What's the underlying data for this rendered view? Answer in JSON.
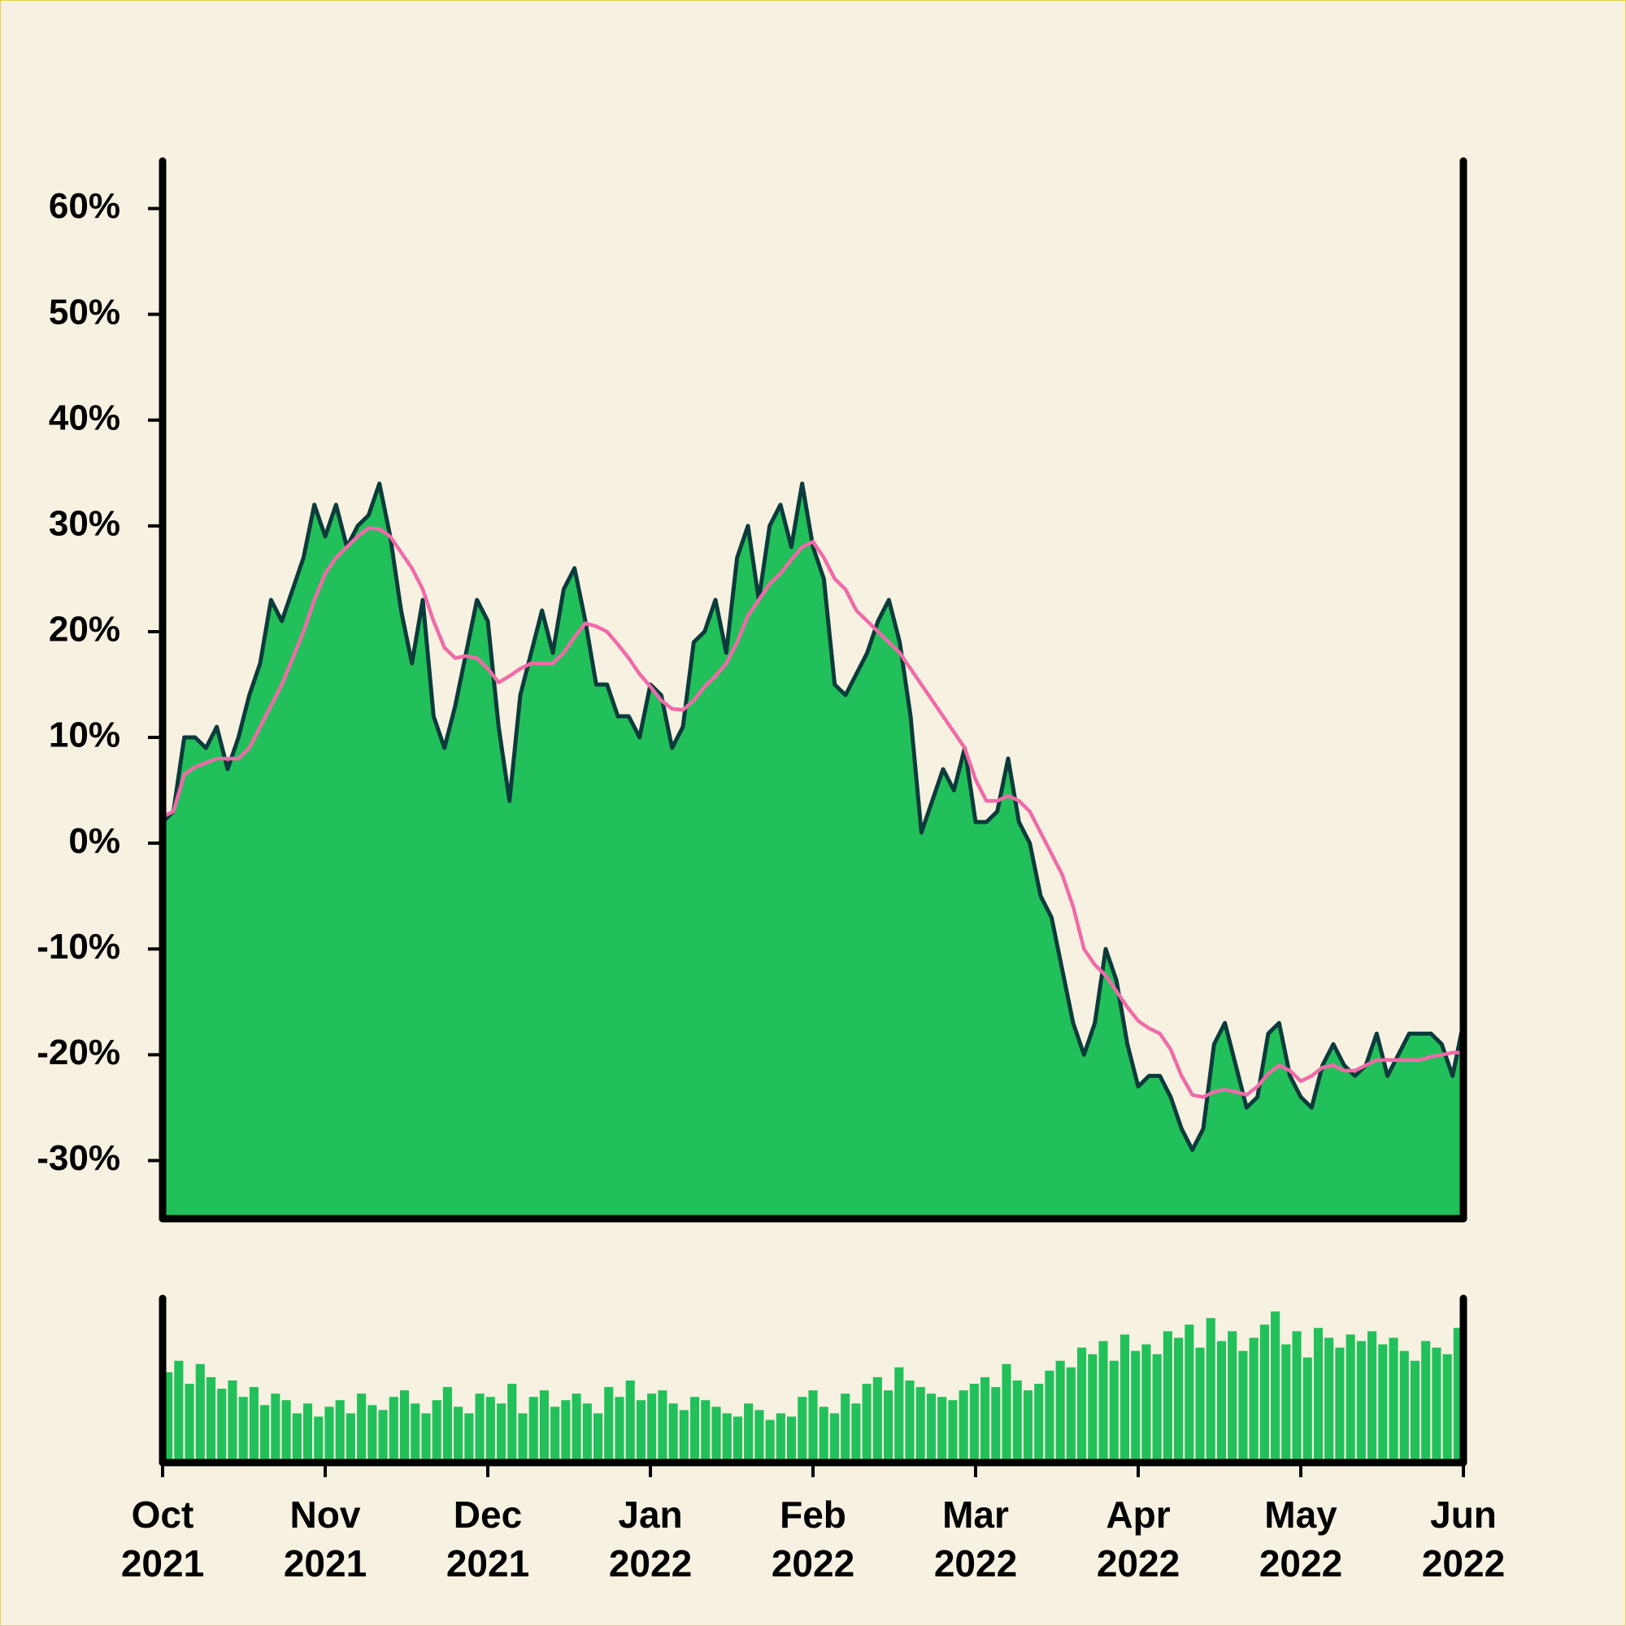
{
  "chart_data": {
    "type": "area",
    "ylim": [
      -35.5,
      64.5
    ],
    "yticks": [
      {
        "value": -30,
        "label": "-30%"
      },
      {
        "value": -20,
        "label": "-20%"
      },
      {
        "value": -10,
        "label": "-10%"
      },
      {
        "value": 0,
        "label": "0%"
      },
      {
        "value": 10,
        "label": "10%"
      },
      {
        "value": 20,
        "label": "20%"
      },
      {
        "value": 30,
        "label": "30%"
      },
      {
        "value": 40,
        "label": "40%"
      },
      {
        "value": 50,
        "label": "50%"
      },
      {
        "value": 60,
        "label": "60%"
      }
    ],
    "xticks": [
      {
        "month": "Oct",
        "year": "2021"
      },
      {
        "month": "Nov",
        "year": "2021"
      },
      {
        "month": "Dec",
        "year": "2021"
      },
      {
        "month": "Jan",
        "year": "2022"
      },
      {
        "month": "Feb",
        "year": "2022"
      },
      {
        "month": "Mar",
        "year": "2022"
      },
      {
        "month": "Apr",
        "year": "2022"
      },
      {
        "month": "May",
        "year": "2022"
      },
      {
        "month": "Jun",
        "year": "2022"
      }
    ],
    "series": [
      {
        "type": "area",
        "color": "#22c05a",
        "line_color": "#0b3b3b",
        "values": [
          2,
          3,
          10,
          10,
          9,
          11,
          7,
          10,
          14,
          17,
          23,
          21,
          24,
          27,
          32,
          29,
          32,
          28,
          30,
          31,
          34,
          29,
          22,
          17,
          23,
          12,
          9,
          13,
          18,
          23,
          21,
          11,
          4,
          14,
          18,
          22,
          18,
          24,
          26,
          21,
          15,
          15,
          12,
          12,
          10,
          15,
          14,
          9,
          11,
          19,
          20,
          23,
          18,
          27,
          30,
          23,
          30,
          32,
          28,
          34,
          28,
          25,
          15,
          14,
          16,
          18,
          21,
          23,
          19,
          12,
          1,
          4,
          7,
          5,
          9,
          2,
          2,
          3,
          8,
          2,
          0,
          -5,
          -7,
          -12,
          -17,
          -20,
          -17,
          -10,
          -13,
          -19,
          -23,
          -22,
          -22,
          -24,
          -27,
          -29,
          -27,
          -19,
          -17,
          -21,
          -25,
          -24,
          -18,
          -17,
          -22,
          -24,
          -25,
          -21,
          -19,
          -21,
          -22,
          -21,
          -18,
          -22,
          -20,
          -18,
          -18,
          -18,
          -19,
          -22,
          -17
        ]
      },
      {
        "type": "line",
        "color": "#f06aa8",
        "values": [
          2.5,
          3,
          6.5,
          7.2,
          7.6,
          8,
          8,
          8,
          9,
          11,
          13,
          15,
          17.5,
          20,
          23,
          25.5,
          27,
          28,
          29,
          29.8,
          29.7,
          29,
          27.5,
          26,
          24,
          21,
          18.5,
          17.5,
          17.7,
          17.5,
          16.5,
          15.2,
          15.8,
          16.5,
          17,
          17,
          17,
          18,
          19.5,
          20.8,
          20.5,
          20,
          18.8,
          17.5,
          16,
          14.8,
          13.5,
          12.7,
          12.6,
          13.5,
          14.8,
          15.8,
          17,
          19,
          21.5,
          23,
          24.5,
          25.5,
          26.8,
          28,
          28.5,
          27,
          25,
          24,
          22,
          21,
          20,
          19,
          18,
          16.5,
          15,
          13.5,
          12,
          10.5,
          9,
          6,
          4,
          4,
          4.5,
          4,
          3,
          1,
          -1,
          -3,
          -6,
          -10,
          -11.5,
          -12.5,
          -14,
          -15.5,
          -16.8,
          -17.5,
          -18,
          -19.5,
          -22,
          -23.8,
          -24,
          -23.5,
          -23.3,
          -23.5,
          -23.8,
          -23,
          -21.8,
          -21,
          -21.5,
          -22.5,
          -22,
          -21.2,
          -21,
          -21.5,
          -21.5,
          -21,
          -20.5,
          -20.5,
          -20.5,
          -20.5,
          -20.5,
          -20.2,
          -20,
          -19.8,
          -19.8
        ]
      }
    ],
    "volume": {
      "type": "bar",
      "color": "#22c05a",
      "ylim": [
        0,
        100
      ],
      "values": [
        55,
        62,
        48,
        60,
        52,
        45,
        50,
        40,
        46,
        35,
        42,
        38,
        30,
        36,
        28,
        34,
        38,
        30,
        42,
        35,
        32,
        40,
        44,
        36,
        30,
        38,
        46,
        34,
        30,
        42,
        40,
        36,
        48,
        30,
        40,
        44,
        34,
        38,
        42,
        36,
        30,
        46,
        40,
        50,
        38,
        42,
        44,
        36,
        32,
        40,
        38,
        34,
        30,
        28,
        36,
        32,
        26,
        30,
        28,
        40,
        44,
        34,
        30,
        42,
        36,
        48,
        52,
        44,
        58,
        50,
        46,
        42,
        40,
        38,
        44,
        48,
        52,
        46,
        60,
        50,
        44,
        48,
        56,
        62,
        58,
        70,
        66,
        74,
        62,
        78,
        68,
        72,
        66,
        80,
        76,
        84,
        70,
        88,
        74,
        80,
        68,
        76,
        84,
        92,
        72,
        80,
        64,
        82,
        76,
        70,
        78,
        74,
        80,
        72,
        76,
        68,
        62,
        74,
        70,
        66,
        82
      ]
    }
  }
}
